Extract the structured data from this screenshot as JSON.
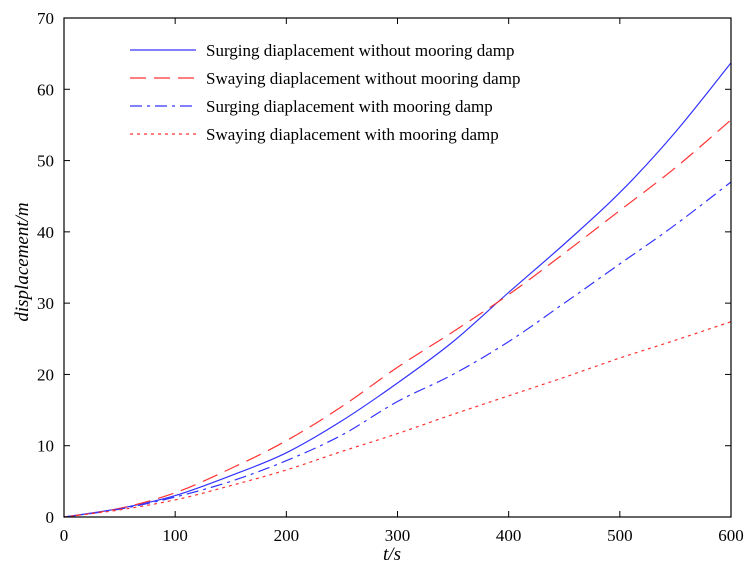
{
  "chart_data": {
    "type": "line",
    "title": "",
    "xlabel": "t/s",
    "ylabel": "displacement/m",
    "xlim": [
      0,
      600
    ],
    "ylim": [
      0,
      70
    ],
    "xticks": [
      0,
      100,
      200,
      300,
      400,
      500,
      600
    ],
    "yticks": [
      0,
      10,
      20,
      30,
      40,
      50,
      60,
      70
    ],
    "grid": false,
    "legend_position": "top-center",
    "x": [
      0,
      50,
      100,
      150,
      200,
      250,
      300,
      350,
      400,
      450,
      500,
      550,
      600
    ],
    "series": [
      {
        "name": "Surging diaplacement without mooring damp",
        "color": "#3333ff",
        "dash": "solid",
        "values": [
          0,
          1.2,
          3.0,
          5.8,
          9.0,
          13.5,
          18.8,
          24.6,
          31.5,
          38.3,
          45.5,
          54.0,
          63.7
        ]
      },
      {
        "name": "Swaying diaplacement without mooring damp",
        "color": "#ff3333",
        "dash": "long-dash",
        "values": [
          0,
          1.2,
          3.4,
          6.8,
          10.7,
          15.5,
          21.0,
          26.0,
          31.2,
          37.0,
          43.0,
          49.0,
          55.7
        ]
      },
      {
        "name": "Surging diaplacement with mooring damp",
        "color": "#3333ff",
        "dash": "dash-dot",
        "values": [
          0,
          1.1,
          2.8,
          5.0,
          7.9,
          11.5,
          16.2,
          20.0,
          24.6,
          30.0,
          35.5,
          41.0,
          47.0
        ]
      },
      {
        "name": "Swaying diaplacement with mooring damp",
        "color": "#ff3333",
        "dash": "dotted",
        "values": [
          0,
          1.0,
          2.4,
          4.4,
          6.6,
          9.2,
          11.7,
          14.4,
          17.0,
          19.6,
          22.3,
          24.8,
          27.4
        ]
      }
    ]
  }
}
